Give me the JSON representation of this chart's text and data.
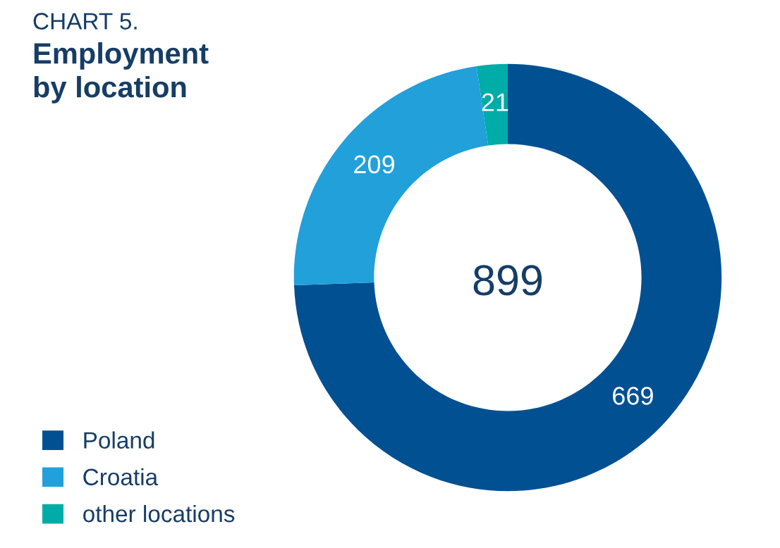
{
  "chart_data": {
    "type": "donut",
    "subtitle": "CHART 5.",
    "title": "Employment\nby location",
    "categories": [
      "Poland",
      "Croatia",
      "other locations"
    ],
    "values": [
      669,
      209,
      21
    ],
    "colors": [
      "#005092",
      "#21a0da",
      "#00aca8"
    ],
    "data_labels": true,
    "annotations": [
      "899"
    ],
    "legend": "bottom left"
  }
}
